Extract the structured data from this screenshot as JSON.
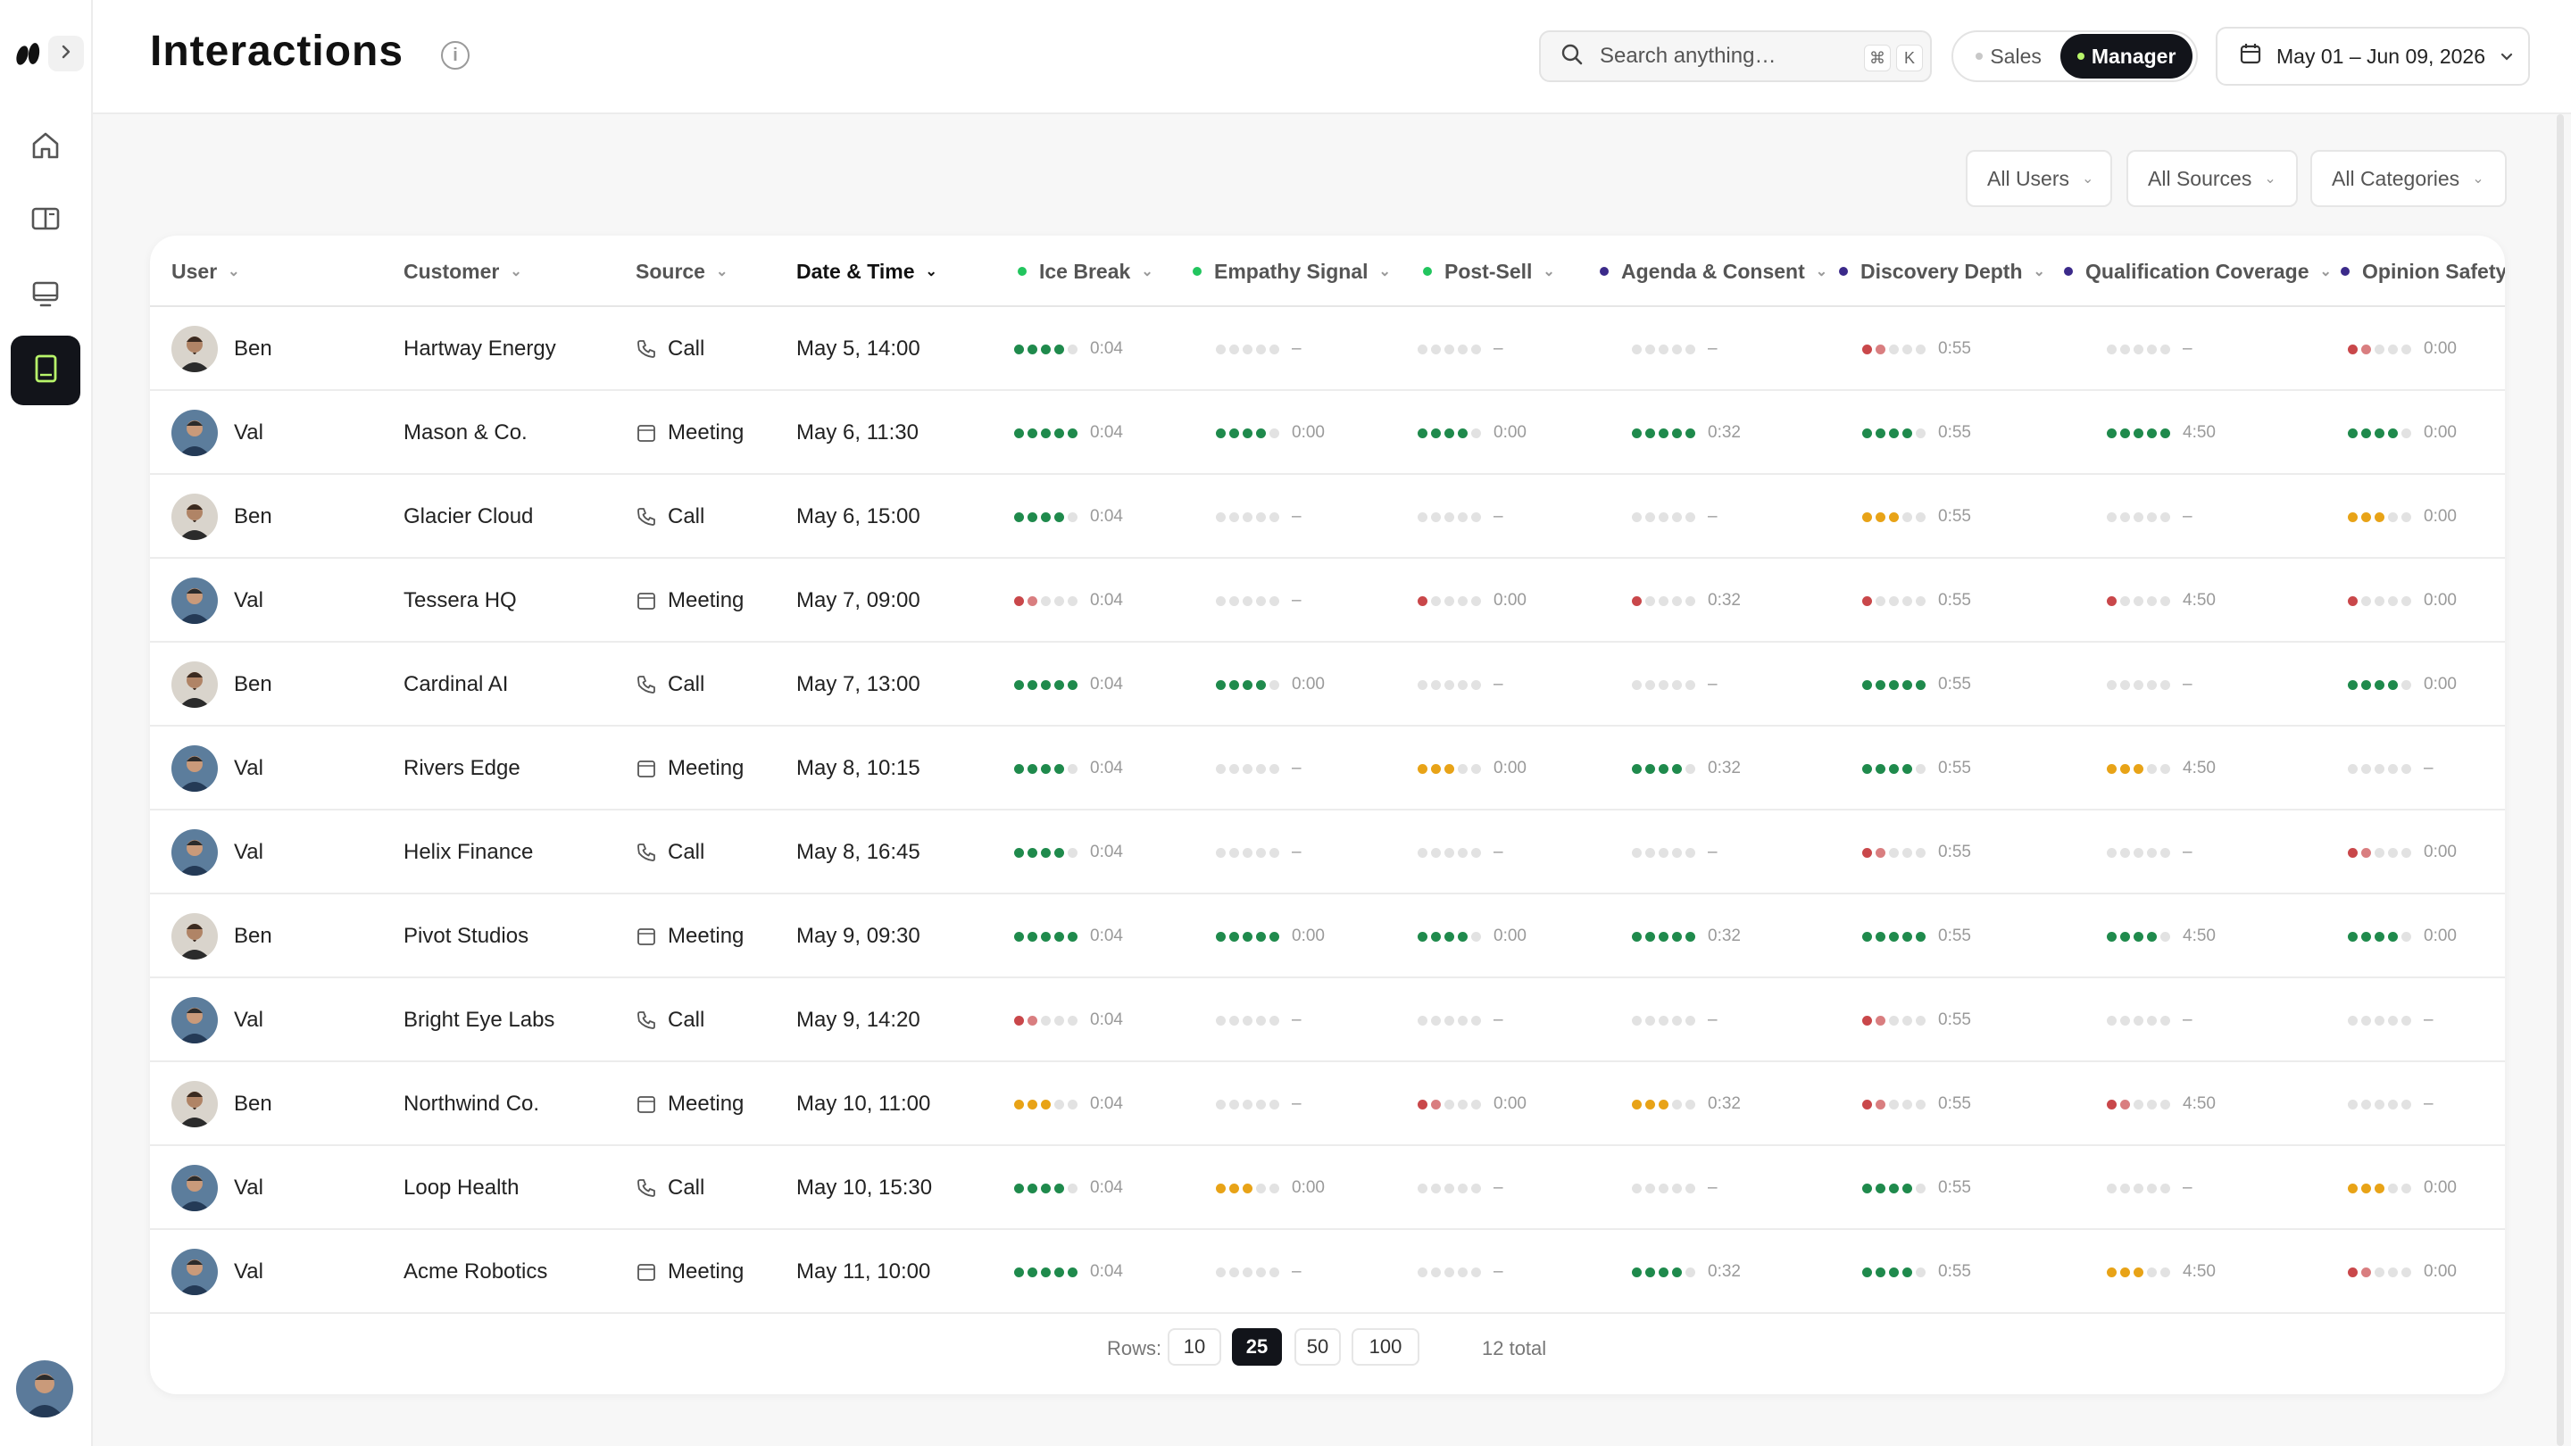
{
  "header": {
    "title": "Interactions",
    "search_placeholder": "Search anything…",
    "shortcut_keys": [
      "⌘",
      "K"
    ],
    "modes": [
      {
        "label": "Sales",
        "active": false
      },
      {
        "label": "Manager",
        "active": true
      }
    ],
    "date_range": "May 01 – Jun 09, 2026"
  },
  "filters": [
    {
      "label": "All Users"
    },
    {
      "label": "All Sources"
    },
    {
      "label": "All Categories"
    }
  ],
  "colors": {
    "green": "#1f8a4c",
    "orange": "#e8a317",
    "red": "#c9474a",
    "empty": "#e2e2e2",
    "dot_green": "#22c55e",
    "dot_purple": "#3b2a8a"
  },
  "table": {
    "columns": [
      {
        "label": "User",
        "dot": null
      },
      {
        "label": "Customer",
        "dot": null
      },
      {
        "label": "Source",
        "dot": null
      },
      {
        "label": "Date & Time",
        "dot": null,
        "sorted": true
      },
      {
        "label": "Ice Break",
        "dot": "green"
      },
      {
        "label": "Empathy Signal",
        "dot": "green"
      },
      {
        "label": "Post-Sell",
        "dot": "green"
      },
      {
        "label": "Agenda & Consent",
        "dot": "purple"
      },
      {
        "label": "Discovery Depth",
        "dot": "purple"
      },
      {
        "label": "Qualification Coverage",
        "dot": "purple"
      },
      {
        "label": "Opinion Safety",
        "dot": "purple"
      }
    ],
    "rows": [
      {
        "user": "Ben",
        "customer": "Hartway Energy",
        "source": "Call",
        "datetime": "May 5, 14:00",
        "scores": [
          [
            4,
            "green",
            "0:04"
          ],
          [
            0,
            "empty",
            "–"
          ],
          [
            0,
            "empty",
            "–"
          ],
          [
            0,
            "empty",
            "–"
          ],
          [
            2,
            "red",
            "0:55"
          ],
          [
            0,
            "empty",
            "–"
          ],
          [
            2,
            "red",
            "0:00"
          ]
        ]
      },
      {
        "user": "Val",
        "customer": "Mason & Co.",
        "source": "Meeting",
        "datetime": "May 6, 11:30",
        "scores": [
          [
            5,
            "green",
            "0:04"
          ],
          [
            4,
            "green",
            "0:00"
          ],
          [
            4,
            "green",
            "0:00"
          ],
          [
            5,
            "green",
            "0:32"
          ],
          [
            4,
            "green",
            "0:55"
          ],
          [
            5,
            "green",
            "4:50"
          ],
          [
            4,
            "green",
            "0:00"
          ]
        ]
      },
      {
        "user": "Ben",
        "customer": "Glacier Cloud",
        "source": "Call",
        "datetime": "May 6, 15:00",
        "scores": [
          [
            4,
            "green",
            "0:04"
          ],
          [
            0,
            "empty",
            "–"
          ],
          [
            0,
            "empty",
            "–"
          ],
          [
            0,
            "empty",
            "–"
          ],
          [
            3,
            "orange",
            "0:55"
          ],
          [
            0,
            "empty",
            "–"
          ],
          [
            3,
            "orange",
            "0:00"
          ]
        ]
      },
      {
        "user": "Val",
        "customer": "Tessera HQ",
        "source": "Meeting",
        "datetime": "May 7, 09:00",
        "scores": [
          [
            2,
            "red",
            "0:04"
          ],
          [
            0,
            "empty",
            "–"
          ],
          [
            1,
            "red",
            "0:00"
          ],
          [
            1,
            "red",
            "0:32"
          ],
          [
            1,
            "red",
            "0:55"
          ],
          [
            1,
            "red",
            "4:50"
          ],
          [
            1,
            "red",
            "0:00"
          ]
        ]
      },
      {
        "user": "Ben",
        "customer": "Cardinal AI",
        "source": "Call",
        "datetime": "May 7, 13:00",
        "scores": [
          [
            5,
            "green",
            "0:04"
          ],
          [
            4,
            "green",
            "0:00"
          ],
          [
            0,
            "empty",
            "–"
          ],
          [
            0,
            "empty",
            "–"
          ],
          [
            5,
            "green",
            "0:55"
          ],
          [
            0,
            "empty",
            "–"
          ],
          [
            4,
            "green",
            "0:00"
          ]
        ]
      },
      {
        "user": "Val",
        "customer": "Rivers Edge",
        "source": "Meeting",
        "datetime": "May 8, 10:15",
        "scores": [
          [
            4,
            "green",
            "0:04"
          ],
          [
            0,
            "empty",
            "–"
          ],
          [
            3,
            "orange",
            "0:00"
          ],
          [
            4,
            "green",
            "0:32"
          ],
          [
            4,
            "green",
            "0:55"
          ],
          [
            3,
            "orange",
            "4:50"
          ],
          [
            0,
            "empty",
            "–"
          ]
        ]
      },
      {
        "user": "Val",
        "customer": "Helix Finance",
        "source": "Call",
        "datetime": "May 8, 16:45",
        "scores": [
          [
            4,
            "green",
            "0:04"
          ],
          [
            0,
            "empty",
            "–"
          ],
          [
            0,
            "empty",
            "–"
          ],
          [
            0,
            "empty",
            "–"
          ],
          [
            2,
            "red",
            "0:55"
          ],
          [
            0,
            "empty",
            "–"
          ],
          [
            2,
            "red",
            "0:00"
          ]
        ]
      },
      {
        "user": "Ben",
        "customer": "Pivot Studios",
        "source": "Meeting",
        "datetime": "May 9, 09:30",
        "scores": [
          [
            5,
            "green",
            "0:04"
          ],
          [
            5,
            "green",
            "0:00"
          ],
          [
            4,
            "green",
            "0:00"
          ],
          [
            5,
            "green",
            "0:32"
          ],
          [
            5,
            "green",
            "0:55"
          ],
          [
            4,
            "green",
            "4:50"
          ],
          [
            4,
            "green",
            "0:00"
          ]
        ]
      },
      {
        "user": "Val",
        "customer": "Bright Eye Labs",
        "source": "Call",
        "datetime": "May 9, 14:20",
        "scores": [
          [
            2,
            "red",
            "0:04"
          ],
          [
            0,
            "empty",
            "–"
          ],
          [
            0,
            "empty",
            "–"
          ],
          [
            0,
            "empty",
            "–"
          ],
          [
            2,
            "red",
            "0:55"
          ],
          [
            0,
            "empty",
            "–"
          ],
          [
            0,
            "empty",
            "–"
          ]
        ]
      },
      {
        "user": "Ben",
        "customer": "Northwind Co.",
        "source": "Meeting",
        "datetime": "May 10, 11:00",
        "scores": [
          [
            3,
            "orange",
            "0:04"
          ],
          [
            0,
            "empty",
            "–"
          ],
          [
            2,
            "red",
            "0:00"
          ],
          [
            3,
            "orange",
            "0:32"
          ],
          [
            2,
            "red",
            "0:55"
          ],
          [
            2,
            "red",
            "4:50"
          ],
          [
            0,
            "empty",
            "–"
          ]
        ]
      },
      {
        "user": "Val",
        "customer": "Loop Health",
        "source": "Call",
        "datetime": "May 10, 15:30",
        "scores": [
          [
            4,
            "green",
            "0:04"
          ],
          [
            3,
            "orange",
            "0:00"
          ],
          [
            0,
            "empty",
            "–"
          ],
          [
            0,
            "empty",
            "–"
          ],
          [
            4,
            "green",
            "0:55"
          ],
          [
            0,
            "empty",
            "–"
          ],
          [
            3,
            "orange",
            "0:00"
          ]
        ]
      },
      {
        "user": "Val",
        "customer": "Acme Robotics",
        "source": "Meeting",
        "datetime": "May 11, 10:00",
        "scores": [
          [
            5,
            "green",
            "0:04"
          ],
          [
            0,
            "empty",
            "–"
          ],
          [
            0,
            "empty",
            "–"
          ],
          [
            4,
            "green",
            "0:32"
          ],
          [
            4,
            "green",
            "0:55"
          ],
          [
            3,
            "orange",
            "4:50"
          ],
          [
            2,
            "red",
            "0:00"
          ]
        ]
      }
    ]
  },
  "pagination": {
    "rows_label": "Rows:",
    "options": [
      {
        "label": "10",
        "active": false
      },
      {
        "label": "25",
        "active": true
      },
      {
        "label": "50",
        "active": false
      },
      {
        "label": "100",
        "active": false
      }
    ],
    "total": "12 total"
  }
}
